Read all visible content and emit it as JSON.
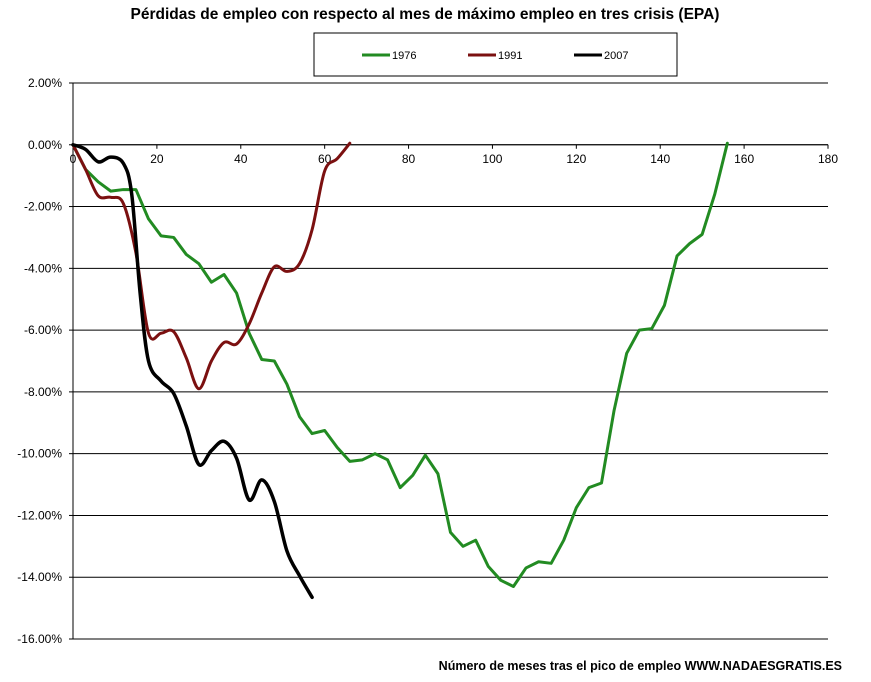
{
  "chart_data": {
    "type": "line",
    "title": "Pérdidas de empleo con respecto al mes de máximo empleo en tres crisis (EPA)",
    "xlabel": "Número de meses tras el pico de empleo WWW.NADAESGRATIS.ES",
    "ylabel": "",
    "xlim": [
      0,
      180
    ],
    "ylim": [
      -16,
      2
    ],
    "x_ticks": [
      "0",
      "20",
      "40",
      "60",
      "80",
      "100",
      "120",
      "140",
      "160",
      "180"
    ],
    "y_ticks": [
      "2.00%",
      "0.00%",
      "-2.00%",
      "-4.00%",
      "-6.00%",
      "-8.00%",
      "-10.00%",
      "-12.00%",
      "-14.00%",
      "-16.00%"
    ],
    "grid": "horizontal",
    "legend_position": "top-center",
    "series": [
      {
        "name": "1976",
        "color": "#228B22",
        "x": [
          0,
          3,
          6,
          9,
          12,
          15,
          18,
          21,
          24,
          27,
          30,
          33,
          36,
          39,
          42,
          45,
          48,
          51,
          54,
          57,
          60,
          63,
          66,
          69,
          72,
          75,
          78,
          81,
          84,
          87,
          90,
          93,
          96,
          99,
          102,
          105,
          108,
          111,
          114,
          117,
          120,
          123,
          126,
          129,
          132,
          135,
          138,
          141,
          144,
          147,
          150,
          153,
          156
        ],
        "values": [
          0,
          -0.8,
          -1.2,
          -1.5,
          -1.45,
          -1.45,
          -2.4,
          -2.95,
          -3.0,
          -3.55,
          -3.85,
          -4.45,
          -4.2,
          -4.8,
          -6.1,
          -6.95,
          -7.0,
          -7.75,
          -8.8,
          -9.35,
          -9.25,
          -9.8,
          -10.25,
          -10.2,
          -10.0,
          -10.2,
          -11.1,
          -10.7,
          -10.05,
          -10.65,
          -12.55,
          -13.0,
          -12.8,
          -13.65,
          -14.1,
          -14.3,
          -13.7,
          -13.5,
          -13.55,
          -12.8,
          -11.75,
          -11.1,
          -10.95,
          -8.6,
          -6.75,
          -6.0,
          -5.95,
          -5.2,
          -3.6,
          -3.2,
          -2.9,
          -1.6,
          0.05
        ]
      },
      {
        "name": "1991",
        "color": "#7B1010",
        "x": [
          0,
          3,
          6,
          9,
          12,
          15,
          18,
          21,
          24,
          27,
          30,
          33,
          36,
          39,
          42,
          45,
          48,
          51,
          54,
          57,
          60,
          63,
          66
        ],
        "values": [
          0,
          -0.8,
          -1.65,
          -1.7,
          -1.9,
          -3.5,
          -6.1,
          -6.1,
          -6.05,
          -6.9,
          -7.9,
          -7.0,
          -6.4,
          -6.45,
          -5.8,
          -4.8,
          -3.95,
          -4.1,
          -3.85,
          -2.75,
          -0.85,
          -0.45,
          0.05
        ]
      },
      {
        "name": "2007",
        "color": "#000000",
        "x": [
          0,
          3,
          6,
          9,
          12,
          14,
          16,
          18,
          21,
          24,
          27,
          30,
          33,
          36,
          39,
          42,
          45,
          48,
          51,
          54,
          57
        ],
        "values": [
          0,
          -0.15,
          -0.55,
          -0.4,
          -0.6,
          -1.6,
          -4.8,
          -7.0,
          -7.65,
          -8.05,
          -9.1,
          -10.35,
          -9.9,
          -9.6,
          -10.15,
          -11.5,
          -10.85,
          -11.55,
          -13.15,
          -13.95,
          -14.65
        ]
      }
    ]
  }
}
